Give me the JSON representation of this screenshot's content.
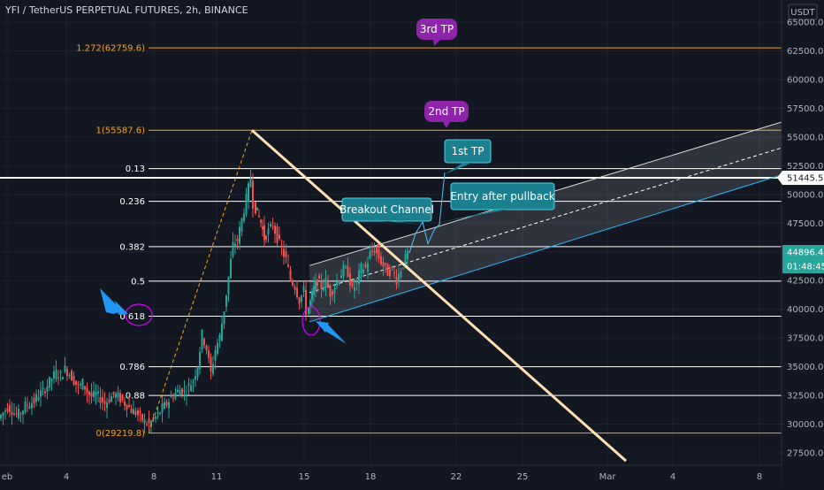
{
  "header": {
    "title": "YFI / TetherUS PERPETUAL FUTURES, 2h, BINANCE"
  },
  "axis": {
    "currency": "USDT"
  },
  "price_tags": {
    "level_price": "51445.5",
    "last_price": "44896.4",
    "countdown": "01:48:45",
    "level_color": "#ffffff",
    "last_color": "#26a69a"
  },
  "annotations": {
    "tp3": "3rd TP",
    "tp2": "2nd TP",
    "tp1": "1st TP",
    "breakout": "Breakout Channel",
    "entry": "Entry after pullback",
    "purple": "#8e24aa",
    "teal": "#1a7f8e"
  },
  "chart_data": {
    "type": "candlestick",
    "ylim": [
      26500,
      66500
    ],
    "y_ticks": [
      "27500.0",
      "30000.0",
      "32500.0",
      "35000.0",
      "37500.0",
      "40000.0",
      "42500.0",
      "45000.0",
      "47500.0",
      "50000.0",
      "52500.0",
      "55000.0",
      "57500.0",
      "60000.0",
      "62500.0",
      "65000.0"
    ],
    "x_ticks": [
      "eb",
      "4",
      "8",
      "11",
      "15",
      "18",
      "22",
      "25",
      "Mar",
      "4",
      "8"
    ],
    "fib_levels": [
      {
        "label": "1.272(62759.6)",
        "value": 62759.6,
        "color": "#f7a21b"
      },
      {
        "label": "1(55587.6)",
        "value": 55587.6,
        "color": "#f7a21b"
      },
      {
        "label": "0.13",
        "value": 52250,
        "color": "#ffffff"
      },
      {
        "label": "0.236",
        "value": 49400,
        "color": "#ffffff"
      },
      {
        "label": "0.382",
        "value": 45450,
        "color": "#ffffff"
      },
      {
        "label": "0.5",
        "value": 42450,
        "color": "#ffffff"
      },
      {
        "label": "0.618",
        "value": 39400,
        "color": "#ffffff"
      },
      {
        "label": "0.786",
        "value": 35000,
        "color": "#ffffff"
      },
      {
        "label": "0.88",
        "value": 32500,
        "color": "#ffffff"
      },
      {
        "label": "0(29219.8)",
        "value": 29219.8,
        "color": "#f7a21b"
      }
    ],
    "horizontal_line": 51445.5,
    "up_color": "#26a69a",
    "down_color": "#ef5350",
    "candle_path": [
      [
        0,
        30500
      ],
      [
        5,
        31000
      ],
      [
        10,
        31500
      ],
      [
        15,
        31200
      ],
      [
        20,
        30800
      ],
      [
        25,
        31000
      ],
      [
        30,
        31600
      ],
      [
        35,
        31800
      ],
      [
        40,
        32000
      ],
      [
        45,
        32600
      ],
      [
        50,
        32800
      ],
      [
        55,
        33400
      ],
      [
        60,
        34000
      ],
      [
        65,
        34500
      ],
      [
        70,
        34200
      ],
      [
        75,
        34800
      ],
      [
        80,
        34400
      ],
      [
        85,
        33800
      ],
      [
        90,
        33200
      ],
      [
        95,
        33600
      ],
      [
        100,
        32800
      ],
      [
        105,
        32400
      ],
      [
        110,
        32600
      ],
      [
        115,
        32200
      ],
      [
        120,
        31800
      ],
      [
        125,
        32200
      ],
      [
        130,
        32600
      ],
      [
        135,
        32400
      ],
      [
        140,
        32000
      ],
      [
        145,
        31700
      ],
      [
        150,
        31200
      ],
      [
        155,
        31000
      ],
      [
        160,
        30600
      ],
      [
        165,
        30200
      ],
      [
        170,
        30000
      ],
      [
        175,
        30400
      ],
      [
        180,
        30800
      ],
      [
        185,
        31400
      ],
      [
        190,
        31800
      ],
      [
        195,
        32300
      ],
      [
        200,
        32700
      ],
      [
        205,
        33000
      ],
      [
        210,
        32800
      ],
      [
        215,
        33300
      ],
      [
        220,
        33800
      ],
      [
        225,
        35200
      ],
      [
        230,
        37800
      ],
      [
        235,
        36600
      ],
      [
        240,
        34400
      ],
      [
        245,
        36500
      ],
      [
        250,
        37600
      ],
      [
        255,
        40000
      ],
      [
        260,
        42800
      ],
      [
        265,
        45600
      ],
      [
        270,
        46000
      ],
      [
        275,
        47800
      ],
      [
        280,
        49600
      ],
      [
        285,
        51500
      ],
      [
        288,
        49200
      ],
      [
        292,
        48400
      ],
      [
        296,
        47600
      ],
      [
        300,
        46200
      ],
      [
        305,
        46800
      ],
      [
        310,
        47400
      ],
      [
        315,
        46200
      ],
      [
        320,
        45200
      ],
      [
        325,
        44300
      ],
      [
        330,
        42600
      ],
      [
        335,
        42000
      ],
      [
        340,
        40800
      ],
      [
        345,
        41600
      ],
      [
        348,
        39800
      ],
      [
        352,
        40600
      ],
      [
        356,
        41800
      ],
      [
        360,
        42500
      ],
      [
        365,
        42000
      ],
      [
        370,
        42400
      ],
      [
        375,
        41400
      ],
      [
        380,
        42000
      ],
      [
        385,
        42800
      ],
      [
        390,
        43500
      ],
      [
        395,
        43200
      ],
      [
        400,
        41600
      ],
      [
        405,
        42400
      ],
      [
        410,
        43600
      ],
      [
        415,
        43600
      ],
      [
        420,
        44800
      ],
      [
        425,
        45200
      ],
      [
        430,
        44500
      ],
      [
        435,
        43800
      ],
      [
        440,
        43200
      ],
      [
        445,
        43400
      ],
      [
        450,
        42600
      ],
      [
        455,
        43500
      ],
      [
        460,
        44400
      ],
      [
        463,
        44896
      ]
    ],
    "trendline": {
      "from": [
        285,
        55587.6
      ],
      "to": [
        708,
        26800
      ]
    },
    "fib_extension_line": {
      "from": [
        168,
        29219.8
      ],
      "to": [
        285,
        55587.6
      ]
    },
    "channel": {
      "upper": {
        "from": [
          350,
          43800
        ],
        "to": [
          884,
          56300
        ]
      },
      "middle": {
        "from": [
          350,
          41450
        ],
        "to": [
          884,
          54050
        ]
      },
      "lower": {
        "from": [
          350,
          38900
        ],
        "to": [
          884,
          51700
        ]
      }
    },
    "projection_path": [
      [
        463,
        44896
      ],
      [
        470,
        46600
      ],
      [
        478,
        47600
      ],
      [
        484,
        45700
      ],
      [
        491,
        46900
      ],
      [
        497,
        47400
      ],
      [
        503,
        51900
      ]
    ]
  }
}
